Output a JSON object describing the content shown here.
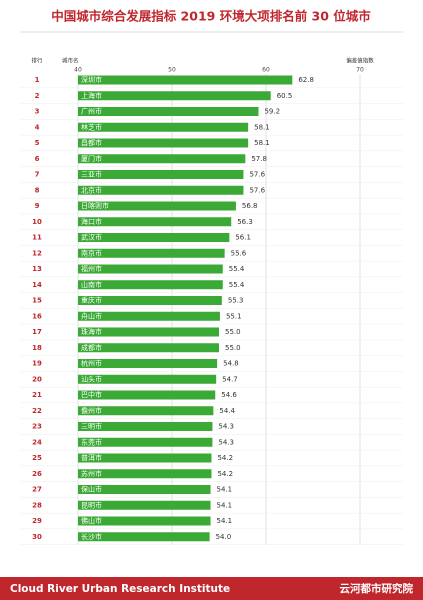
{
  "chart_data": {
    "type": "hbar",
    "title": "中国城市综合发展指标 2019 环境大项排名前 30 位城市",
    "rank_header": "排行",
    "category_header": "城市名",
    "value_header": "偏差值指数",
    "ranks": [
      "1",
      "2",
      "3",
      "4",
      "5",
      "6",
      "7",
      "8",
      "9",
      "10",
      "11",
      "12",
      "13",
      "14",
      "15",
      "16",
      "17",
      "18",
      "19",
      "20",
      "21",
      "22",
      "23",
      "24",
      "25",
      "26",
      "27",
      "28",
      "29",
      "30"
    ],
    "categories": [
      "深圳市",
      "上海市",
      "广州市",
      "林芝市",
      "昌都市",
      "厦门市",
      "三亚市",
      "北京市",
      "日喀则市",
      "海口市",
      "武汉市",
      "南京市",
      "福州市",
      "山南市",
      "重庆市",
      "舟山市",
      "珠海市",
      "成都市",
      "杭州市",
      "汕头市",
      "巴中市",
      "儋州市",
      "三明市",
      "东莞市",
      "普洱市",
      "苏州市",
      "保山市",
      "昆明市",
      "佛山市",
      "长沙市"
    ],
    "values": [
      62.8,
      60.5,
      59.2,
      58.1,
      58.1,
      57.8,
      57.6,
      57.6,
      56.8,
      56.3,
      56.1,
      55.6,
      55.4,
      55.4,
      55.3,
      55.1,
      55.0,
      55.0,
      54.8,
      54.7,
      54.6,
      54.4,
      54.3,
      54.3,
      54.2,
      54.2,
      54.1,
      54.1,
      54.1,
      54.0
    ],
    "value_labels": [
      "62.8",
      "60.5",
      "59.2",
      "58.1",
      "58.1",
      "57.8",
      "57.6",
      "57.6",
      "56.8",
      "56.3",
      "56.1",
      "55.6",
      "55.4",
      "55.4",
      "55.3",
      "55.1",
      "55.0",
      "55.0",
      "54.8",
      "54.7",
      "54.6",
      "54.4",
      "54.3",
      "54.3",
      "54.2",
      "54.2",
      "54.1",
      "54.1",
      "54.1",
      "54.0"
    ],
    "color": "#3aa935",
    "xlim": [
      40,
      70
    ],
    "xticks": [
      40,
      50,
      60,
      70
    ],
    "grid": true,
    "footer_left": "Cloud River Urban Research Institute",
    "footer_right": "云河都市研究院"
  }
}
